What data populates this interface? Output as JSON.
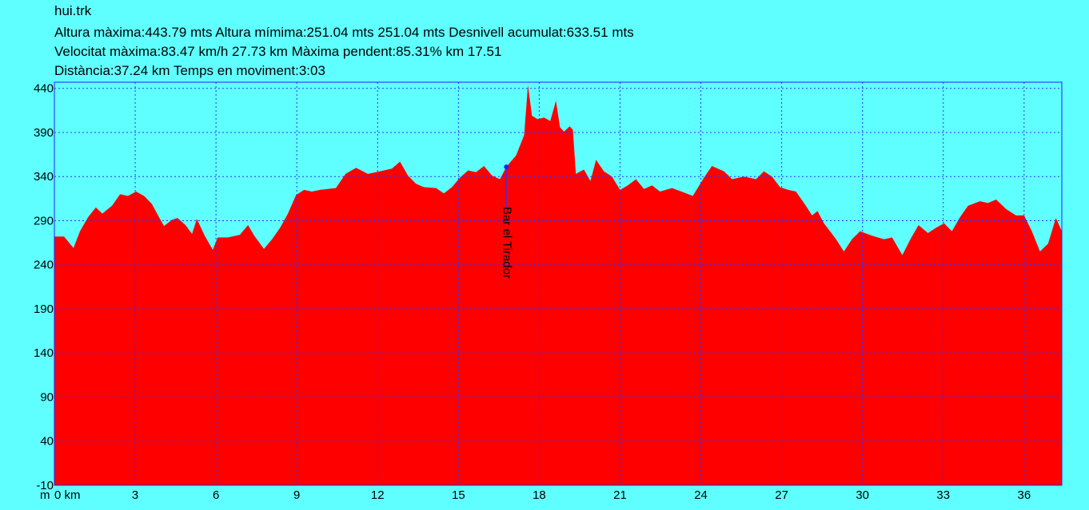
{
  "chart_data": {
    "type": "area",
    "title": "hui.trk",
    "subtitle": [
      "Altura màxima:443.79 mts Altura mímima:251.04 mts 251.04 mts Desnivell acumulat:633.51 mts",
      "Velocitat màxima:83.47 km/h 27.73 km Màxima pendent:85.31% km 17.51",
      "Distància:37.24 km Temps en moviment:3:03"
    ],
    "ylabel": "m",
    "color": "#ff0000",
    "x": [
      0,
      0.36,
      0.71,
      0.95,
      1.25,
      1.54,
      1.78,
      2.14,
      2.44,
      2.73,
      3.03,
      3.33,
      3.62,
      3.92,
      4.07,
      4.37,
      4.57,
      4.87,
      5.11,
      5.29,
      5.58,
      5.88,
      6.06,
      6.44,
      6.89,
      7.19,
      7.42,
      7.78,
      8.08,
      8.38,
      8.67,
      8.97,
      9.27,
      9.56,
      9.86,
      10.45,
      10.81,
      11.2,
      11.64,
      12.09,
      12.53,
      12.83,
      13.13,
      13.42,
      13.72,
      14.17,
      14.46,
      14.76,
      15.06,
      15.36,
      15.65,
      15.95,
      16.25,
      16.54,
      16.78,
      17.14,
      17.44,
      17.58,
      17.73,
      17.94,
      18.18,
      18.41,
      18.62,
      18.77,
      18.92,
      19.13,
      19.25,
      19.36,
      19.66,
      19.9,
      20.11,
      20.4,
      20.7,
      21.0,
      21.29,
      21.59,
      21.89,
      22.19,
      22.48,
      22.93,
      23.37,
      23.7,
      24.12,
      24.41,
      24.86,
      25.16,
      25.6,
      26.05,
      26.34,
      26.64,
      26.94,
      27.24,
      27.53,
      27.83,
      28.13,
      28.33,
      28.57,
      29.02,
      29.31,
      29.61,
      29.91,
      30.35,
      30.8,
      31.1,
      31.48,
      31.78,
      32.08,
      32.43,
      32.73,
      33.03,
      33.32,
      33.62,
      33.92,
      34.36,
      34.66,
      34.96,
      35.34,
      35.7,
      36.0,
      36.29,
      36.59,
      36.89,
      37.18,
      37.4
    ],
    "values": [
      272,
      272,
      259,
      278,
      294,
      305,
      298,
      307,
      320,
      318,
      323,
      318,
      309,
      292,
      284,
      291,
      293,
      285,
      275,
      292,
      273,
      257,
      271,
      271,
      274,
      285,
      273,
      258,
      269,
      282,
      298,
      319,
      325,
      323,
      325,
      327,
      343,
      350,
      343,
      346,
      349,
      357,
      341,
      332,
      328,
      327,
      321,
      328,
      339,
      347,
      345,
      352,
      341,
      337,
      351,
      364,
      387,
      443.8,
      409,
      405,
      407,
      403,
      426,
      396,
      391,
      397,
      393,
      343,
      348,
      335,
      359,
      346,
      340,
      325,
      330,
      337,
      326,
      330,
      323,
      327,
      322,
      318,
      339,
      352,
      346,
      337,
      340,
      337,
      346,
      340,
      328,
      325,
      323,
      310,
      296,
      301,
      287,
      269,
      255,
      269,
      278,
      273,
      269,
      271,
      251,
      269,
      285,
      276,
      282,
      287,
      278,
      294,
      307,
      312,
      310,
      314,
      303,
      296,
      296,
      278,
      255,
      264,
      293,
      278
    ],
    "xlim": [
      0,
      37.4
    ],
    "ylim": [
      -10,
      447
    ],
    "xticks": [
      {
        "value": 0,
        "label": "0 km"
      },
      3,
      6,
      9,
      12,
      15,
      18,
      21,
      24,
      27,
      30,
      33,
      36
    ],
    "yticks": [
      -10,
      40,
      90,
      140,
      190,
      240,
      290,
      340,
      390,
      440
    ],
    "grid": true,
    "annotations": [
      {
        "text": "Bar el Tirador",
        "x": 16.78,
        "y": 351
      }
    ]
  }
}
